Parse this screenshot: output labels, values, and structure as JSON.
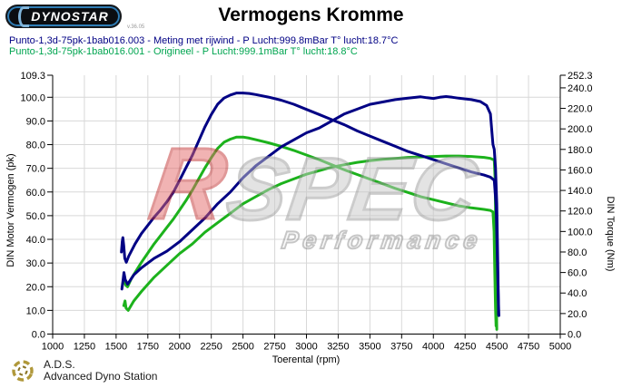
{
  "header": {
    "logo_text": "DYNOSTAR",
    "logo_version": "v.36.05",
    "title": "Vermogens Kromme"
  },
  "legend": [
    {
      "label": "Punto-1,3d-75pk-1bab016.003 - Meting met rijwind - P Lucht:999.8mBar T° lucht:18.7°C",
      "color": "#000084"
    },
    {
      "label": "Punto-1,3d-75pk-1bab016.001 - Origineel - P Lucht:999.1mBar T° lucht:18.8°C",
      "color": "#00A550"
    }
  ],
  "watermark": {
    "brand_r": "R",
    "brand_name": "SPEC",
    "tagline": "Performance"
  },
  "footer": {
    "abbr": "A.D.S.",
    "name": "Advanced Dyno Station"
  },
  "chart_data": {
    "type": "line",
    "title": "Vermogens Kromme",
    "xlabel": "Toerental (rpm)",
    "ylabel_left": "DIN Motor Vermogen (pk)",
    "ylabel_right": "DIN Torque (Nm)",
    "xlim": [
      1000,
      5000
    ],
    "ylim_left": [
      0,
      109.3
    ],
    "ylim_right": [
      0,
      252.3
    ],
    "grid": true,
    "x_ticks": [
      1000,
      1250,
      1500,
      1750,
      2000,
      2250,
      2500,
      2750,
      3000,
      3250,
      3500,
      3750,
      4000,
      4250,
      4500,
      4750,
      5000
    ],
    "y_ticks_left": [
      109.3,
      100,
      90,
      80,
      70,
      60,
      50,
      40,
      30,
      20,
      10,
      0
    ],
    "y_ticks_right": [
      252.3,
      240,
      220,
      200,
      180,
      160,
      140,
      120,
      100,
      80,
      60,
      40,
      20,
      0
    ],
    "series": [
      {
        "name": "Origineel (.001) koppel",
        "unit": "Nm",
        "axis": "right",
        "color": "#1CB21C",
        "points": [
          [
            1558,
            50
          ],
          [
            1566,
            56
          ],
          [
            1574,
            48
          ],
          [
            1590,
            46
          ],
          [
            1620,
            54
          ],
          [
            1660,
            62
          ],
          [
            1700,
            70
          ],
          [
            1750,
            79
          ],
          [
            1800,
            88
          ],
          [
            1850,
            96
          ],
          [
            1900,
            104
          ],
          [
            1950,
            112
          ],
          [
            2000,
            121
          ],
          [
            2050,
            130
          ],
          [
            2100,
            140
          ],
          [
            2150,
            151
          ],
          [
            2200,
            162
          ],
          [
            2250,
            172
          ],
          [
            2300,
            181
          ],
          [
            2350,
            187
          ],
          [
            2400,
            190
          ],
          [
            2450,
            192
          ],
          [
            2500,
            192
          ],
          [
            2550,
            191
          ],
          [
            2600,
            189.5
          ],
          [
            2700,
            186.5
          ],
          [
            2800,
            183
          ],
          [
            2900,
            179
          ],
          [
            3000,
            174.5
          ],
          [
            3100,
            170
          ],
          [
            3200,
            165
          ],
          [
            3300,
            160
          ],
          [
            3400,
            155.5
          ],
          [
            3500,
            151
          ],
          [
            3600,
            146.5
          ],
          [
            3700,
            142
          ],
          [
            3800,
            138
          ],
          [
            3900,
            134
          ],
          [
            4000,
            131
          ],
          [
            4100,
            128
          ],
          [
            4200,
            125
          ],
          [
            4300,
            123
          ],
          [
            4400,
            121.5
          ],
          [
            4450,
            120.5
          ],
          [
            4470,
            119
          ],
          [
            4478,
            100
          ],
          [
            4484,
            60
          ],
          [
            4490,
            25
          ],
          [
            4494,
            8
          ]
        ]
      },
      {
        "name": "Origineel (.001) vermogen",
        "unit": "pk",
        "axis": "left",
        "color": "#1CB21C",
        "points": [
          [
            1560,
            12
          ],
          [
            1570,
            14
          ],
          [
            1578,
            11
          ],
          [
            1595,
            10
          ],
          [
            1640,
            14
          ],
          [
            1700,
            18
          ],
          [
            1800,
            24
          ],
          [
            1900,
            29
          ],
          [
            2000,
            34
          ],
          [
            2100,
            38
          ],
          [
            2200,
            43
          ],
          [
            2300,
            47
          ],
          [
            2400,
            51
          ],
          [
            2500,
            55
          ],
          [
            2600,
            58
          ],
          [
            2700,
            61
          ],
          [
            2800,
            63.5
          ],
          [
            2900,
            65.5
          ],
          [
            3000,
            67.5
          ],
          [
            3100,
            69
          ],
          [
            3200,
            70.5
          ],
          [
            3300,
            71.5
          ],
          [
            3400,
            72.5
          ],
          [
            3500,
            73.2
          ],
          [
            3600,
            73.8
          ],
          [
            3700,
            74.2
          ],
          [
            3800,
            74.6
          ],
          [
            3900,
            74.8
          ],
          [
            4000,
            75
          ],
          [
            4100,
            75.2
          ],
          [
            4200,
            75.2
          ],
          [
            4300,
            75
          ],
          [
            4400,
            74.6
          ],
          [
            4450,
            74.2
          ],
          [
            4480,
            73.5
          ],
          [
            4487,
            65
          ],
          [
            4492,
            40
          ],
          [
            4497,
            15
          ],
          [
            4500,
            2
          ]
        ]
      },
      {
        "name": "Meting met rijwind (.003) koppel",
        "unit": "Nm",
        "axis": "right",
        "color": "#000084",
        "points": [
          [
            1542,
            80
          ],
          [
            1548,
            90
          ],
          [
            1553,
            94
          ],
          [
            1560,
            86
          ],
          [
            1568,
            74
          ],
          [
            1580,
            70
          ],
          [
            1600,
            76
          ],
          [
            1650,
            88
          ],
          [
            1700,
            98
          ],
          [
            1750,
            106
          ],
          [
            1800,
            114
          ],
          [
            1850,
            121
          ],
          [
            1900,
            129
          ],
          [
            1950,
            138
          ],
          [
            2000,
            150
          ],
          [
            2050,
            162
          ],
          [
            2100,
            174
          ],
          [
            2150,
            188
          ],
          [
            2200,
            202
          ],
          [
            2250,
            214
          ],
          [
            2300,
            224
          ],
          [
            2350,
            230
          ],
          [
            2400,
            233
          ],
          [
            2450,
            235
          ],
          [
            2500,
            235
          ],
          [
            2550,
            234.5
          ],
          [
            2600,
            233.5
          ],
          [
            2700,
            231
          ],
          [
            2800,
            228
          ],
          [
            2900,
            224
          ],
          [
            3000,
            219
          ],
          [
            3100,
            214
          ],
          [
            3200,
            209
          ],
          [
            3300,
            204
          ],
          [
            3400,
            198
          ],
          [
            3500,
            193
          ],
          [
            3600,
            188
          ],
          [
            3700,
            183
          ],
          [
            3800,
            178
          ],
          [
            3900,
            174
          ],
          [
            4000,
            170
          ],
          [
            4100,
            166
          ],
          [
            4200,
            162
          ],
          [
            4300,
            158
          ],
          [
            4400,
            155
          ],
          [
            4450,
            153
          ],
          [
            4480,
            150
          ],
          [
            4495,
            125
          ],
          [
            4505,
            70
          ],
          [
            4512,
            35
          ],
          [
            4516,
            18
          ]
        ]
      },
      {
        "name": "Meting met rijwind (.003) vermogen",
        "unit": "pk",
        "axis": "left",
        "color": "#000084",
        "points": [
          [
            1545,
            19
          ],
          [
            1555,
            23
          ],
          [
            1562,
            26
          ],
          [
            1572,
            23
          ],
          [
            1590,
            21
          ],
          [
            1640,
            25
          ],
          [
            1700,
            28
          ],
          [
            1800,
            32
          ],
          [
            1900,
            35
          ],
          [
            2000,
            39
          ],
          [
            2100,
            44
          ],
          [
            2200,
            49
          ],
          [
            2300,
            55
          ],
          [
            2400,
            60
          ],
          [
            2500,
            66
          ],
          [
            2600,
            71
          ],
          [
            2700,
            75
          ],
          [
            2800,
            79
          ],
          [
            2900,
            82
          ],
          [
            3000,
            85
          ],
          [
            3100,
            87
          ],
          [
            3200,
            90
          ],
          [
            3300,
            93
          ],
          [
            3400,
            95
          ],
          [
            3500,
            97
          ],
          [
            3600,
            98
          ],
          [
            3700,
            99
          ],
          [
            3800,
            99.6
          ],
          [
            3900,
            100.2
          ],
          [
            3950,
            99.8
          ],
          [
            4000,
            99.5
          ],
          [
            4050,
            100
          ],
          [
            4100,
            100.3
          ],
          [
            4150,
            100
          ],
          [
            4200,
            99.6
          ],
          [
            4300,
            99
          ],
          [
            4370,
            98.2
          ],
          [
            4420,
            96.5
          ],
          [
            4450,
            93
          ],
          [
            4462,
            85
          ],
          [
            4470,
            80
          ],
          [
            4480,
            78
          ],
          [
            4490,
            70
          ],
          [
            4500,
            55
          ],
          [
            4508,
            30
          ],
          [
            4514,
            8
          ]
        ]
      }
    ]
  }
}
